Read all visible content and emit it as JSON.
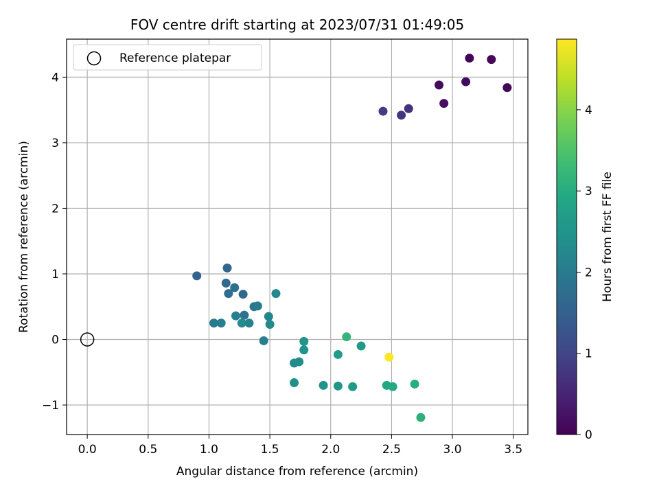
{
  "chart_data": {
    "type": "scatter",
    "title": "FOV centre drift starting at 2023/07/31 01:49:05",
    "xlabel": "Angular distance from reference (arcmin)",
    "ylabel": "Rotation from reference (arcmin)",
    "xlim": [
      -0.17,
      3.62
    ],
    "ylim": [
      -1.45,
      4.58
    ],
    "xticks": [
      "0.0",
      "0.5",
      "1.0",
      "1.5",
      "2.0",
      "2.5",
      "3.0",
      "3.5"
    ],
    "xtick_values": [
      0,
      0.5,
      1.0,
      1.5,
      2.0,
      2.5,
      3.0,
      3.5
    ],
    "yticks": [
      "−1",
      "0",
      "1",
      "2",
      "3",
      "4"
    ],
    "ytick_values": [
      -1,
      0,
      1,
      2,
      3,
      4
    ],
    "grid": true,
    "legend": {
      "position": "top-left",
      "entries": [
        "Reference platepar"
      ]
    },
    "reference_point": {
      "x": 0.0,
      "y": 0.0
    },
    "colorbar": {
      "label": "Hours from first FF file",
      "range": [
        0,
        4.87
      ],
      "ticks": [
        "0",
        "1",
        "2",
        "3",
        "4"
      ],
      "tick_values": [
        0,
        1,
        2,
        3,
        4
      ],
      "colormap": "viridis"
    },
    "points": [
      {
        "x": 3.14,
        "y": 4.29,
        "c": 0.05
      },
      {
        "x": 3.32,
        "y": 4.27,
        "c": 0.1
      },
      {
        "x": 2.89,
        "y": 3.88,
        "c": 0.15
      },
      {
        "x": 3.11,
        "y": 3.93,
        "c": 0.12
      },
      {
        "x": 3.45,
        "y": 3.84,
        "c": 0.08
      },
      {
        "x": 2.93,
        "y": 3.6,
        "c": 0.2
      },
      {
        "x": 2.43,
        "y": 3.48,
        "c": 0.85
      },
      {
        "x": 2.58,
        "y": 3.42,
        "c": 0.75
      },
      {
        "x": 2.64,
        "y": 3.52,
        "c": 0.7
      },
      {
        "x": 0.9,
        "y": 0.97,
        "c": 1.5
      },
      {
        "x": 1.15,
        "y": 1.09,
        "c": 1.6
      },
      {
        "x": 1.14,
        "y": 0.86,
        "c": 1.7
      },
      {
        "x": 1.21,
        "y": 0.79,
        "c": 1.8
      },
      {
        "x": 1.16,
        "y": 0.7,
        "c": 1.75
      },
      {
        "x": 1.28,
        "y": 0.69,
        "c": 1.65
      },
      {
        "x": 1.55,
        "y": 0.7,
        "c": 2.25
      },
      {
        "x": 1.37,
        "y": 0.5,
        "c": 1.9
      },
      {
        "x": 1.4,
        "y": 0.51,
        "c": 2.0
      },
      {
        "x": 1.22,
        "y": 0.36,
        "c": 2.1
      },
      {
        "x": 1.29,
        "y": 0.37,
        "c": 1.85
      },
      {
        "x": 1.49,
        "y": 0.35,
        "c": 2.2
      },
      {
        "x": 1.04,
        "y": 0.25,
        "c": 2.0
      },
      {
        "x": 1.1,
        "y": 0.25,
        "c": 2.05
      },
      {
        "x": 1.27,
        "y": 0.25,
        "c": 2.3
      },
      {
        "x": 1.33,
        "y": 0.25,
        "c": 2.15
      },
      {
        "x": 1.5,
        "y": 0.23,
        "c": 2.25
      },
      {
        "x": 1.45,
        "y": -0.02,
        "c": 2.1
      },
      {
        "x": 1.78,
        "y": -0.03,
        "c": 2.5
      },
      {
        "x": 1.78,
        "y": -0.16,
        "c": 2.45
      },
      {
        "x": 2.13,
        "y": 0.04,
        "c": 3.2
      },
      {
        "x": 2.25,
        "y": -0.1,
        "c": 2.6
      },
      {
        "x": 2.06,
        "y": -0.23,
        "c": 2.7
      },
      {
        "x": 1.7,
        "y": -0.36,
        "c": 2.3
      },
      {
        "x": 1.74,
        "y": -0.34,
        "c": 2.35
      },
      {
        "x": 2.48,
        "y": -0.27,
        "c": 4.87
      },
      {
        "x": 1.7,
        "y": -0.66,
        "c": 2.4
      },
      {
        "x": 1.94,
        "y": -0.7,
        "c": 2.5
      },
      {
        "x": 2.06,
        "y": -0.71,
        "c": 2.55
      },
      {
        "x": 2.18,
        "y": -0.72,
        "c": 2.65
      },
      {
        "x": 2.46,
        "y": -0.7,
        "c": 2.9
      },
      {
        "x": 2.51,
        "y": -0.72,
        "c": 2.95
      },
      {
        "x": 2.69,
        "y": -0.68,
        "c": 3.05
      },
      {
        "x": 2.74,
        "y": -1.19,
        "c": 3.1
      }
    ]
  }
}
